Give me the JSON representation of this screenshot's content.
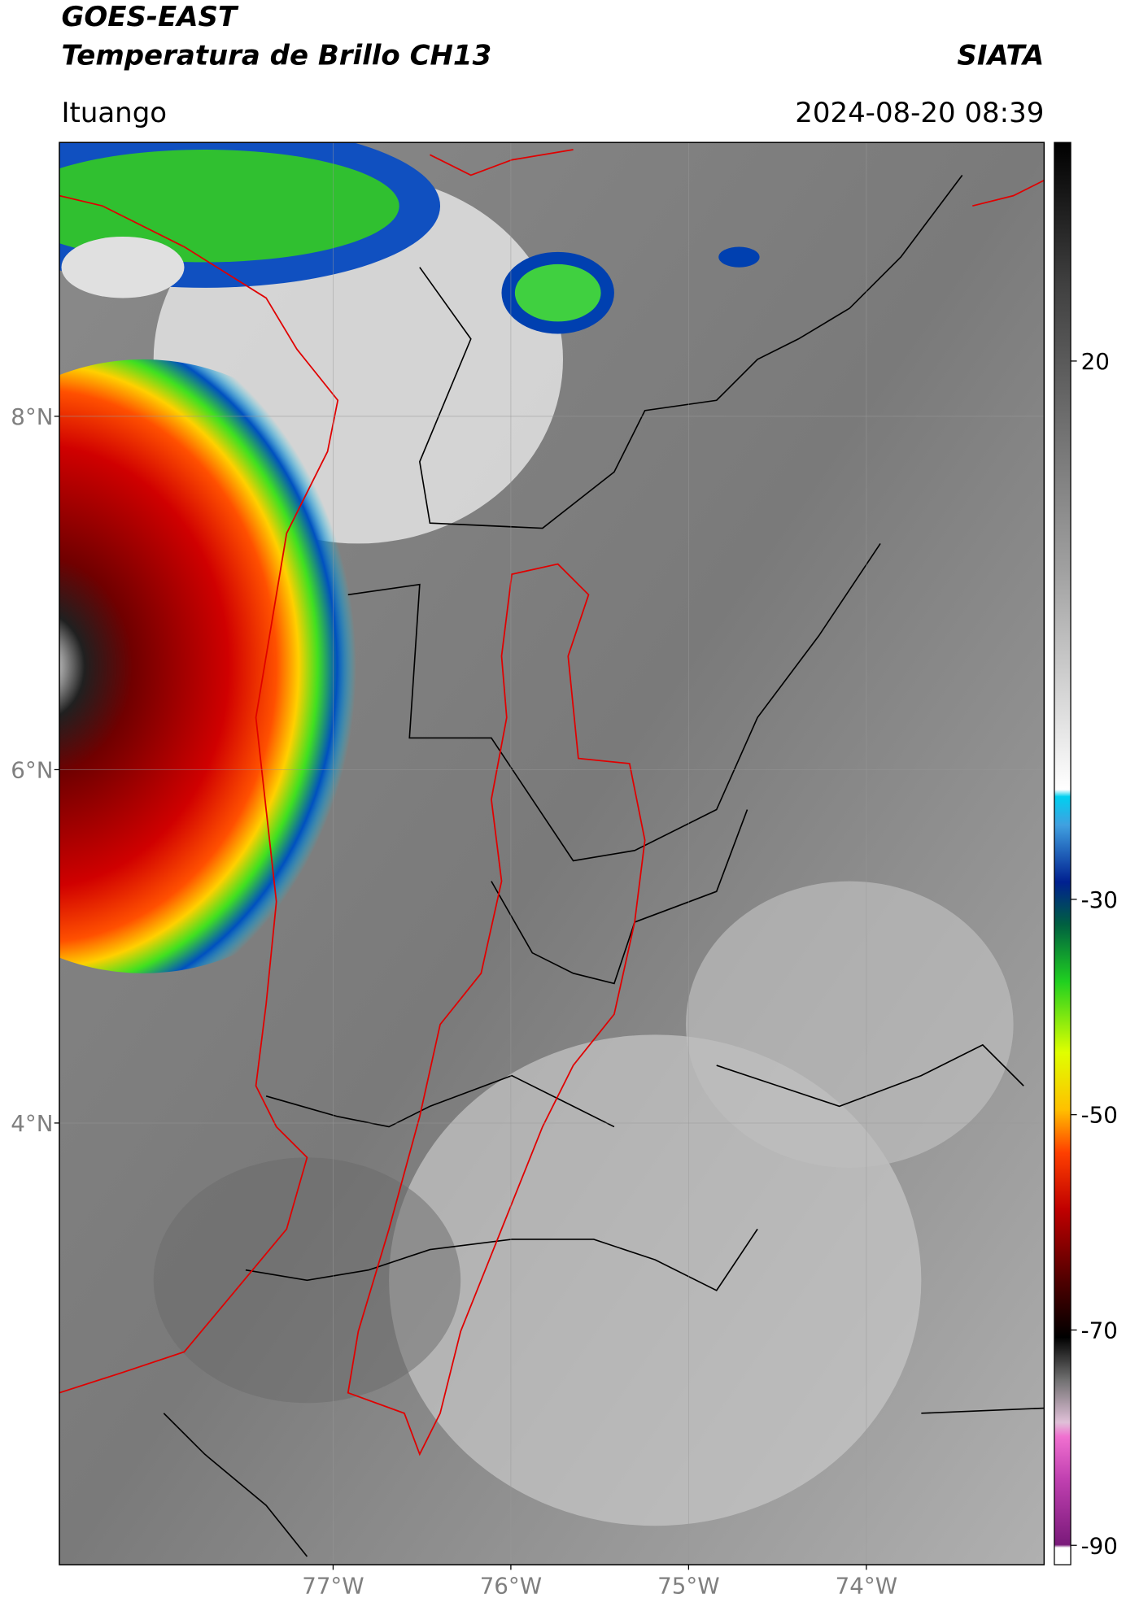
{
  "header": {
    "title": "GOES-EAST",
    "subtitle": "Temperatura de Brillo CH13",
    "brand": "SIATA",
    "region": "Ituango",
    "timestamp": "2024-08-20 08:39"
  },
  "map": {
    "lat_range": [
      1.5,
      9.55
    ],
    "lon_range": [
      -78.54,
      -73.0
    ],
    "lat_ticks": [
      {
        "value": 8,
        "label": "8°N"
      },
      {
        "value": 6,
        "label": "6°N"
      },
      {
        "value": 4,
        "label": "4°N"
      }
    ],
    "lon_ticks": [
      {
        "value": -77,
        "label": "77°W"
      },
      {
        "value": -76,
        "label": "76°W"
      },
      {
        "value": -75,
        "label": "75°W"
      },
      {
        "value": -74,
        "label": "74°W"
      }
    ]
  },
  "colorbar": {
    "range": [
      -91.8,
      40.3
    ],
    "ticks": [
      20,
      -30,
      -50,
      -70,
      -90
    ]
  }
}
